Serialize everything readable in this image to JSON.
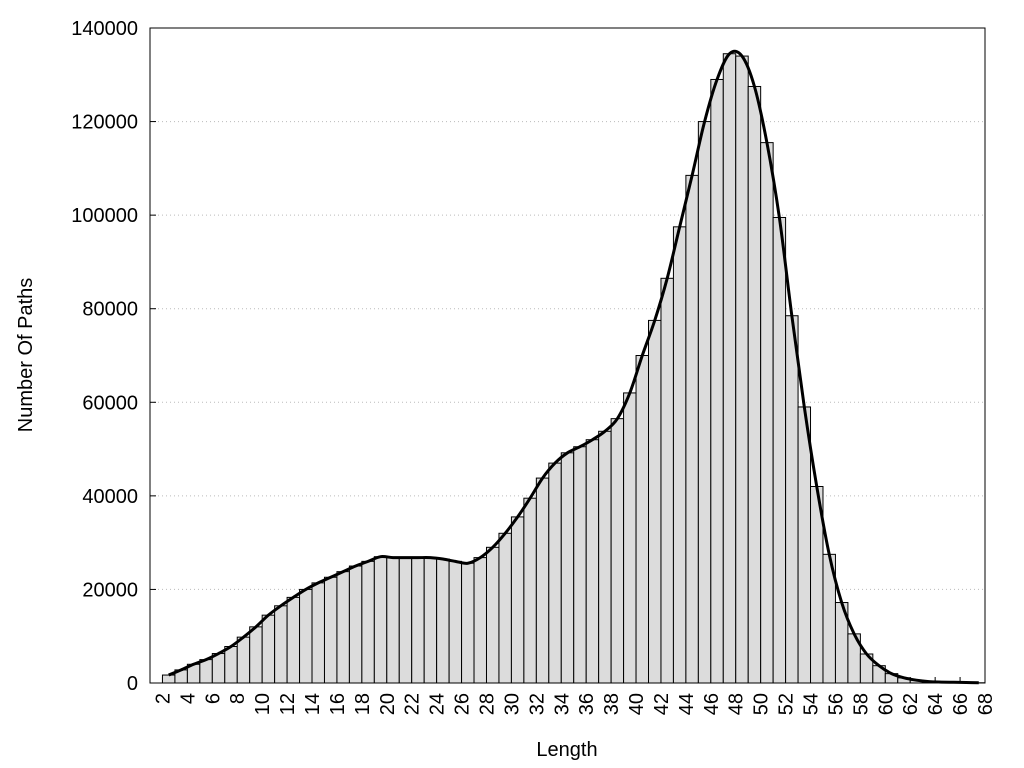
{
  "chart_data": {
    "type": "histogram",
    "xlabel": "Length",
    "ylabel": "Number Of Paths",
    "bins": [
      2,
      3,
      4,
      5,
      6,
      7,
      8,
      9,
      10,
      11,
      12,
      13,
      14,
      15,
      16,
      17,
      18,
      19,
      20,
      21,
      22,
      23,
      24,
      25,
      26,
      27,
      28,
      29,
      30,
      31,
      32,
      33,
      34,
      35,
      36,
      37,
      38,
      39,
      40,
      41,
      42,
      43,
      44,
      45,
      46,
      47,
      48,
      49,
      50,
      51,
      52,
      53,
      54,
      55,
      56,
      57,
      58,
      59,
      60,
      61,
      62,
      63,
      64,
      65,
      66,
      67,
      68
    ],
    "values": [
      1700,
      2800,
      4000,
      5000,
      6300,
      7800,
      9800,
      12000,
      14500,
      16500,
      18300,
      20000,
      21400,
      22600,
      23800,
      25000,
      26000,
      27000,
      26800,
      26800,
      26800,
      26800,
      26500,
      26000,
      25600,
      26800,
      29000,
      32000,
      35500,
      39500,
      43800,
      47000,
      49200,
      50500,
      52000,
      53800,
      56500,
      62000,
      70000,
      77500,
      86500,
      97500,
      108500,
      120000,
      129000,
      134500,
      134000,
      127500,
      115500,
      99500,
      78500,
      59000,
      42000,
      27500,
      17200,
      10500,
      6200,
      3700,
      2000,
      1100,
      600,
      300,
      200,
      150,
      100,
      50
    ],
    "color": "#dcdcdc",
    "edge_color": "#000000",
    "curve": true,
    "curve_color": "#000000",
    "xlim": [
      1,
      68
    ],
    "xticks": [
      2,
      4,
      6,
      8,
      10,
      12,
      14,
      16,
      18,
      20,
      22,
      24,
      26,
      28,
      30,
      32,
      34,
      36,
      38,
      40,
      42,
      44,
      46,
      48,
      50,
      52,
      54,
      56,
      58,
      60,
      62,
      64,
      66,
      68
    ],
    "ylim": [
      0,
      140000
    ],
    "yticks": [
      0,
      20000,
      40000,
      60000,
      80000,
      100000,
      120000,
      140000
    ],
    "grid": true
  }
}
